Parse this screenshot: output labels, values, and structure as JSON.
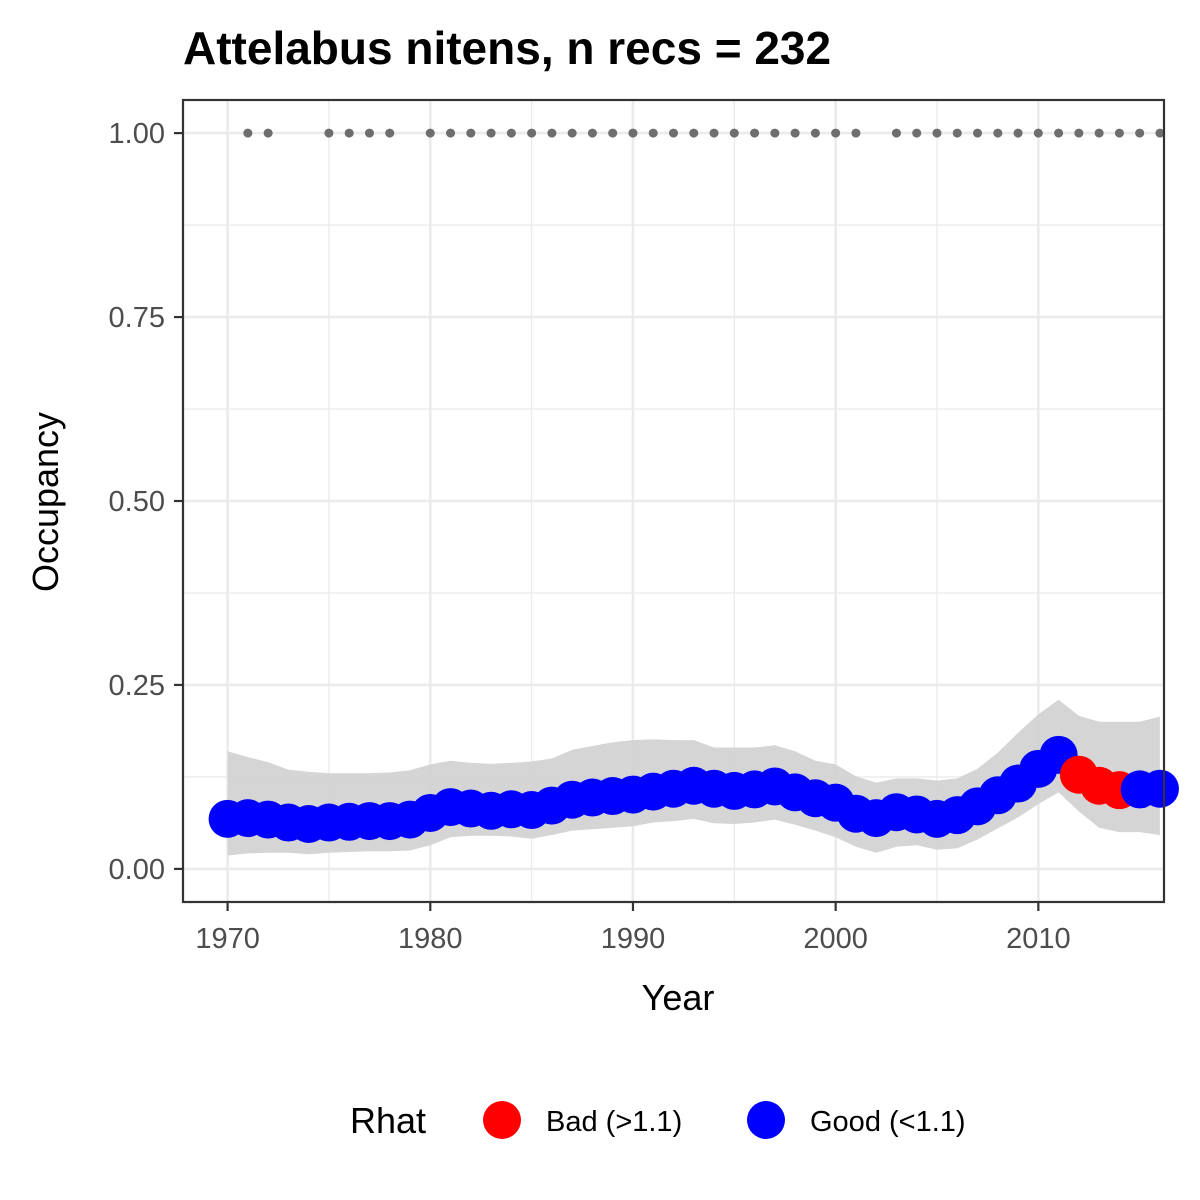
{
  "chart_data": {
    "type": "line",
    "title": "Attelabus nitens, n recs = 232",
    "xlabel": "Year",
    "ylabel": "Occupancy",
    "xlim": [
      1967.8,
      2016.2
    ],
    "ylim": [
      -0.045,
      1.045
    ],
    "x_ticks": [
      1970,
      1980,
      1990,
      2000,
      2010
    ],
    "x_tick_labels": [
      "1970",
      "1980",
      "1990",
      "2000",
      "2010"
    ],
    "y_ticks": [
      0,
      0.25,
      0.5,
      0.75,
      1.0
    ],
    "y_tick_labels": [
      "0.00",
      "0.25",
      "0.50",
      "0.75",
      "1.00"
    ],
    "grid": true,
    "legend": {
      "title": "Rhat",
      "position": "bottom",
      "entries": [
        {
          "label": "Bad (>1.1)",
          "color": "#ff0000"
        },
        {
          "label": "Good (<1.1)",
          "color": "#0000ff"
        }
      ]
    },
    "colors": {
      "good": "#0000ff",
      "bad": "#ff0000",
      "ribbon": "#d3d3d3",
      "record_dots": "#6e6e6e",
      "panel_border": "#333333",
      "grid": "#ebebeb"
    },
    "series": [
      {
        "name": "Occupancy",
        "x": [
          1970,
          1971,
          1972,
          1973,
          1974,
          1975,
          1976,
          1977,
          1978,
          1979,
          1980,
          1981,
          1982,
          1983,
          1984,
          1985,
          1986,
          1987,
          1988,
          1989,
          1990,
          1991,
          1992,
          1993,
          1994,
          1995,
          1996,
          1997,
          1998,
          1999,
          2000,
          2001,
          2002,
          2003,
          2004,
          2005,
          2006,
          2007,
          2008,
          2009,
          2010,
          2011,
          2012,
          2013,
          2014,
          2015,
          2016
        ],
        "y": [
          0.068,
          0.069,
          0.067,
          0.063,
          0.061,
          0.063,
          0.064,
          0.065,
          0.065,
          0.067,
          0.076,
          0.084,
          0.082,
          0.079,
          0.081,
          0.08,
          0.086,
          0.094,
          0.097,
          0.099,
          0.101,
          0.105,
          0.109,
          0.113,
          0.109,
          0.106,
          0.108,
          0.112,
          0.104,
          0.096,
          0.09,
          0.075,
          0.069,
          0.077,
          0.074,
          0.068,
          0.073,
          0.085,
          0.1,
          0.116,
          0.136,
          0.155,
          0.128,
          0.113,
          0.107,
          0.108,
          0.109
        ],
        "lower": [
          0.018,
          0.021,
          0.022,
          0.022,
          0.02,
          0.022,
          0.023,
          0.024,
          0.024,
          0.025,
          0.032,
          0.043,
          0.045,
          0.045,
          0.044,
          0.041,
          0.046,
          0.052,
          0.054,
          0.056,
          0.058,
          0.063,
          0.065,
          0.068,
          0.062,
          0.061,
          0.063,
          0.067,
          0.06,
          0.052,
          0.043,
          0.03,
          0.022,
          0.03,
          0.032,
          0.026,
          0.028,
          0.04,
          0.055,
          0.07,
          0.088,
          0.104,
          0.078,
          0.056,
          0.05,
          0.05,
          0.046
        ],
        "upper": [
          0.16,
          0.152,
          0.145,
          0.135,
          0.132,
          0.13,
          0.13,
          0.13,
          0.131,
          0.134,
          0.142,
          0.147,
          0.144,
          0.143,
          0.144,
          0.146,
          0.15,
          0.162,
          0.167,
          0.172,
          0.175,
          0.176,
          0.175,
          0.175,
          0.165,
          0.165,
          0.165,
          0.168,
          0.16,
          0.147,
          0.142,
          0.126,
          0.117,
          0.123,
          0.123,
          0.12,
          0.123,
          0.136,
          0.158,
          0.185,
          0.21,
          0.23,
          0.208,
          0.2,
          0.2,
          0.2,
          0.207
        ],
        "rhat": [
          "good",
          "good",
          "good",
          "good",
          "good",
          "good",
          "good",
          "good",
          "good",
          "good",
          "good",
          "good",
          "good",
          "good",
          "good",
          "good",
          "good",
          "good",
          "good",
          "good",
          "good",
          "good",
          "good",
          "good",
          "good",
          "good",
          "good",
          "good",
          "good",
          "good",
          "good",
          "good",
          "good",
          "good",
          "good",
          "good",
          "good",
          "good",
          "good",
          "good",
          "good",
          "good",
          "bad",
          "bad",
          "bad",
          "good",
          "good"
        ]
      }
    ],
    "record_years": [
      1971,
      1972,
      1975,
      1976,
      1977,
      1978,
      1980,
      1981,
      1982,
      1983,
      1984,
      1985,
      1986,
      1987,
      1988,
      1989,
      1990,
      1991,
      1992,
      1993,
      1994,
      1995,
      1996,
      1997,
      1998,
      1999,
      2000,
      2001,
      2003,
      2004,
      2005,
      2006,
      2007,
      2008,
      2009,
      2010,
      2011,
      2012,
      2013,
      2014,
      2015,
      2016
    ],
    "record_value": 1.0
  }
}
